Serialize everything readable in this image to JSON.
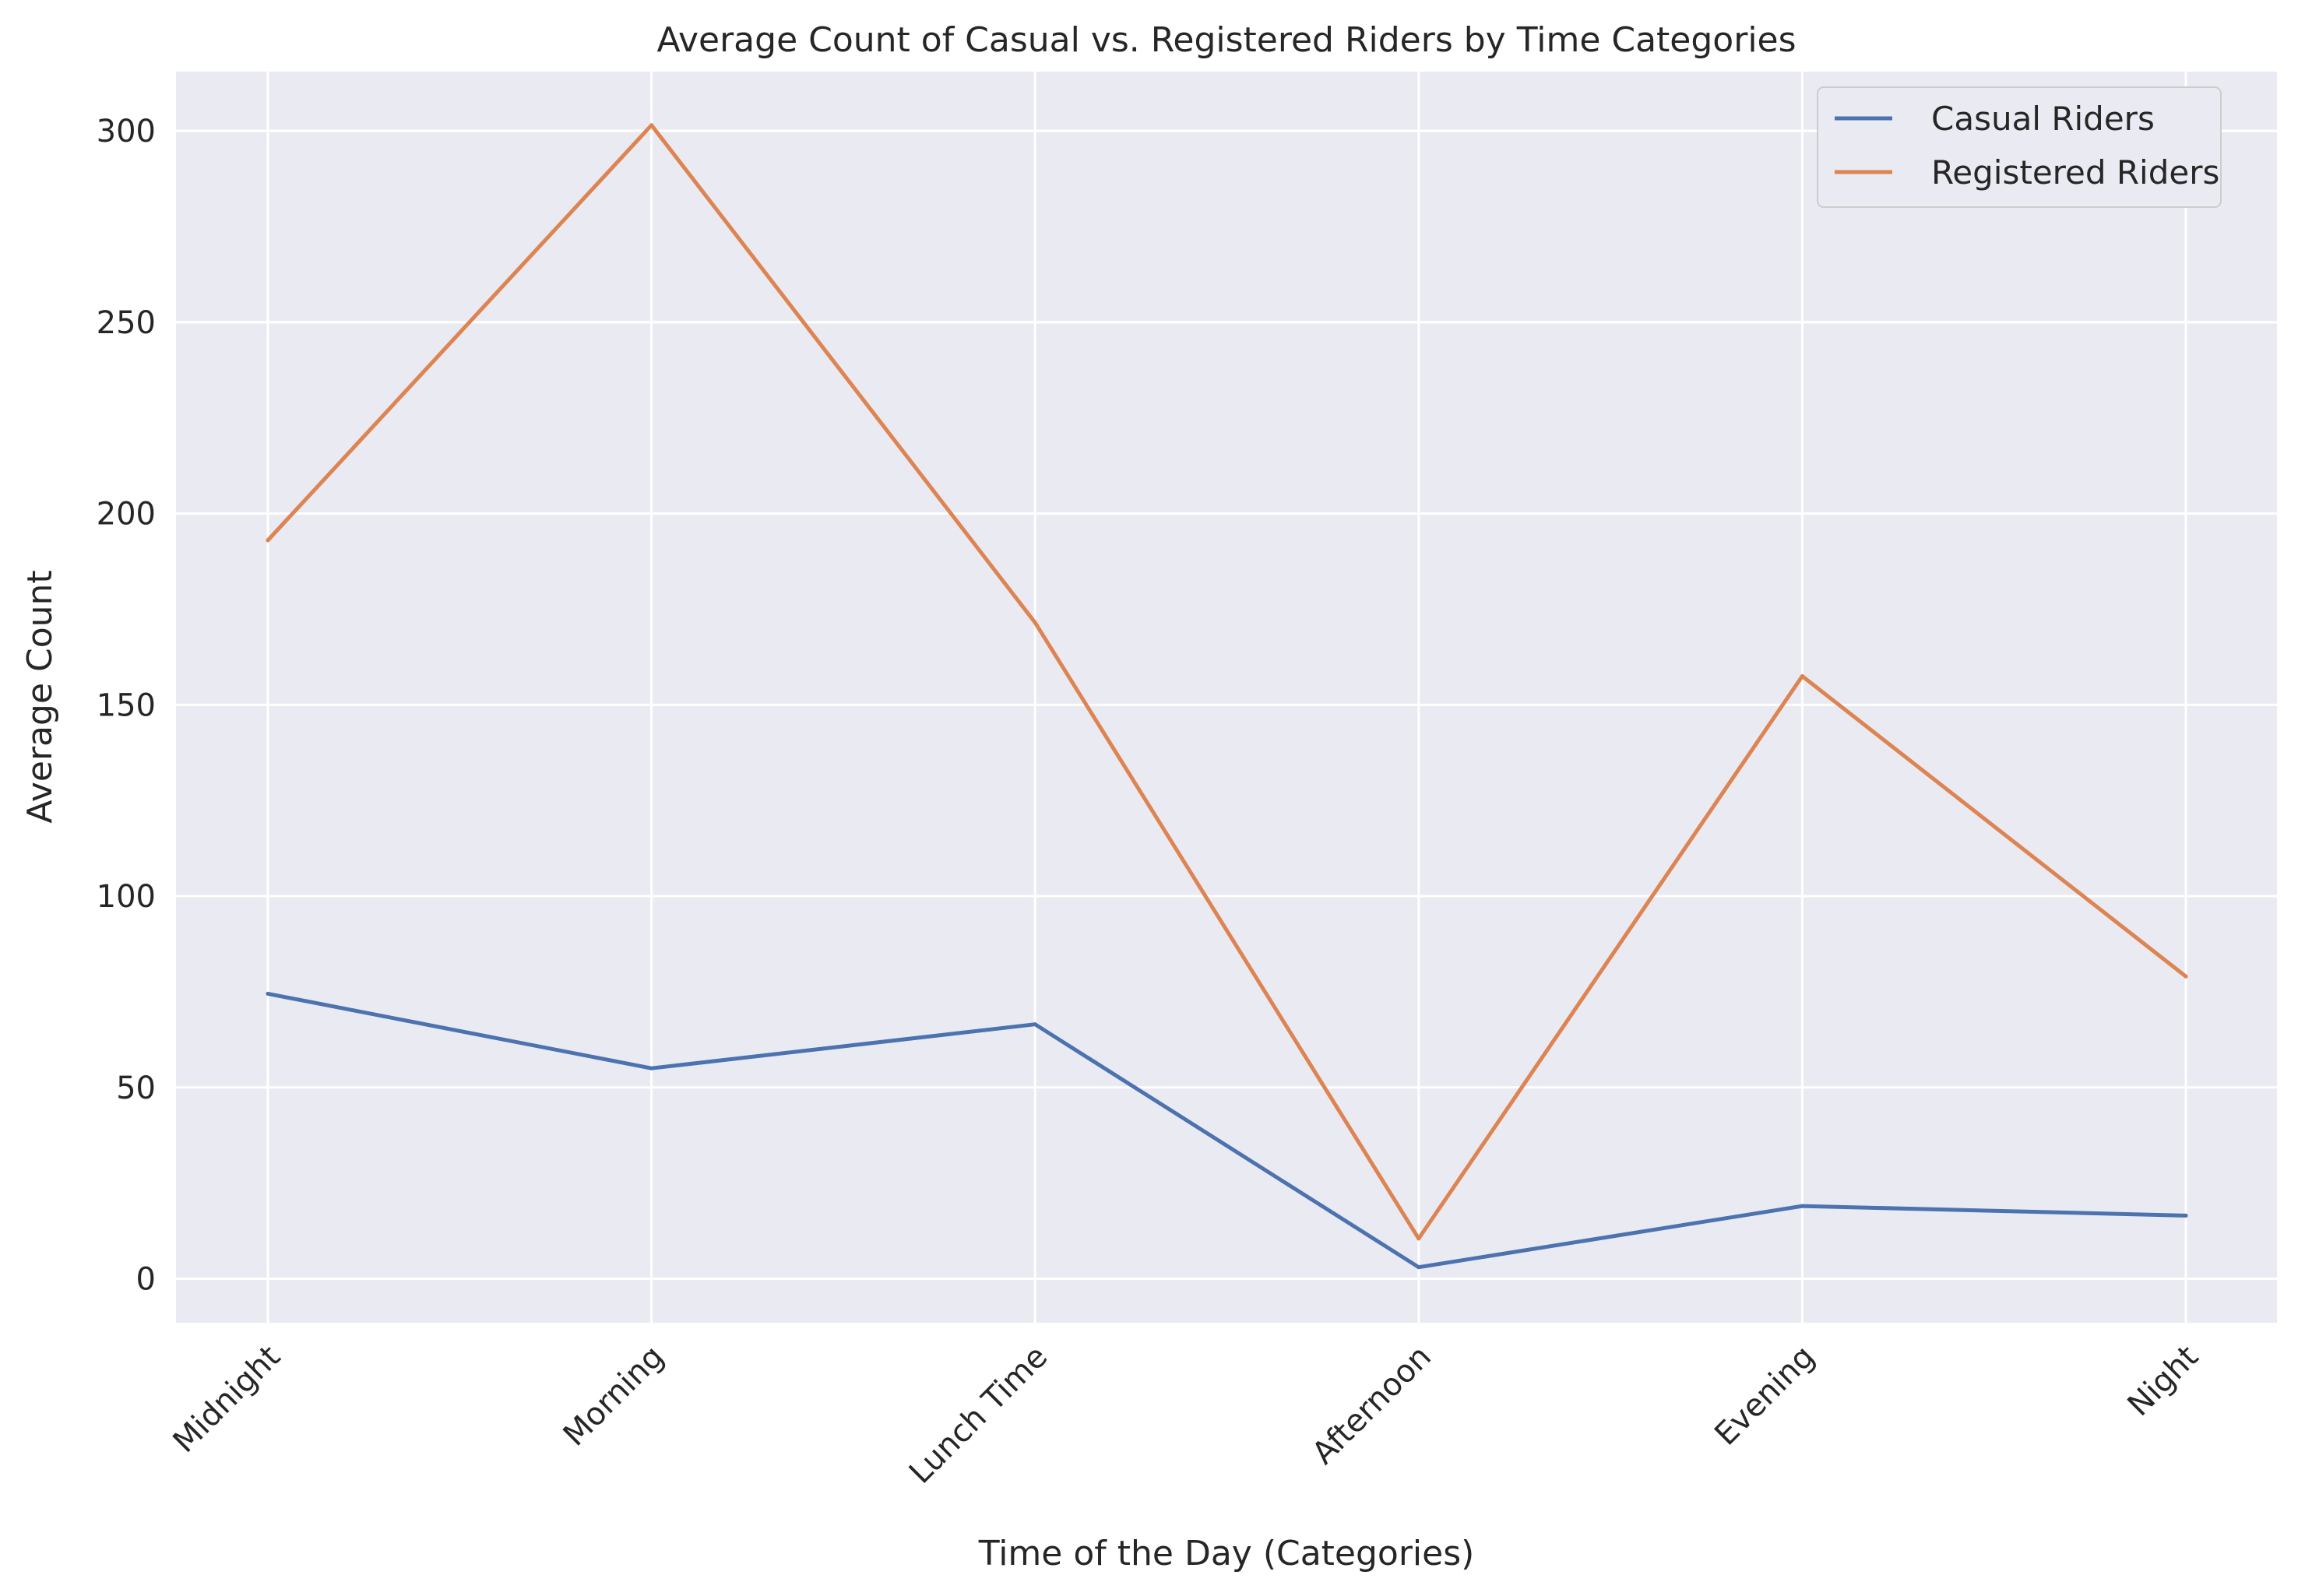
{
  "chart_data": {
    "type": "line",
    "title": "Average Count of Casual vs. Registered Riders by Time Categories",
    "xlabel": "Time of the Day (Categories)",
    "ylabel": "Average Count",
    "categories": [
      "Midnight",
      "Morning",
      "Lunch Time",
      "Afternoon",
      "Evening",
      "Night"
    ],
    "series": [
      {
        "name": "Casual Riders",
        "color": "#4c72b0",
        "values": [
          74.5,
          55.0,
          66.5,
          3.0,
          19.0,
          16.5
        ]
      },
      {
        "name": "Registered Riders",
        "color": "#dd8452",
        "values": [
          193.0,
          301.5,
          171.5,
          10.5,
          157.5,
          79.0
        ]
      }
    ],
    "yticks": [
      0,
      50,
      100,
      150,
      200,
      250,
      300
    ],
    "ylim": [
      -11.5,
      315.5
    ],
    "grid": true,
    "legend_position": "top-right",
    "colors": {
      "background": "#eaeaf2",
      "grid": "#ffffff",
      "text": "#262626"
    }
  }
}
